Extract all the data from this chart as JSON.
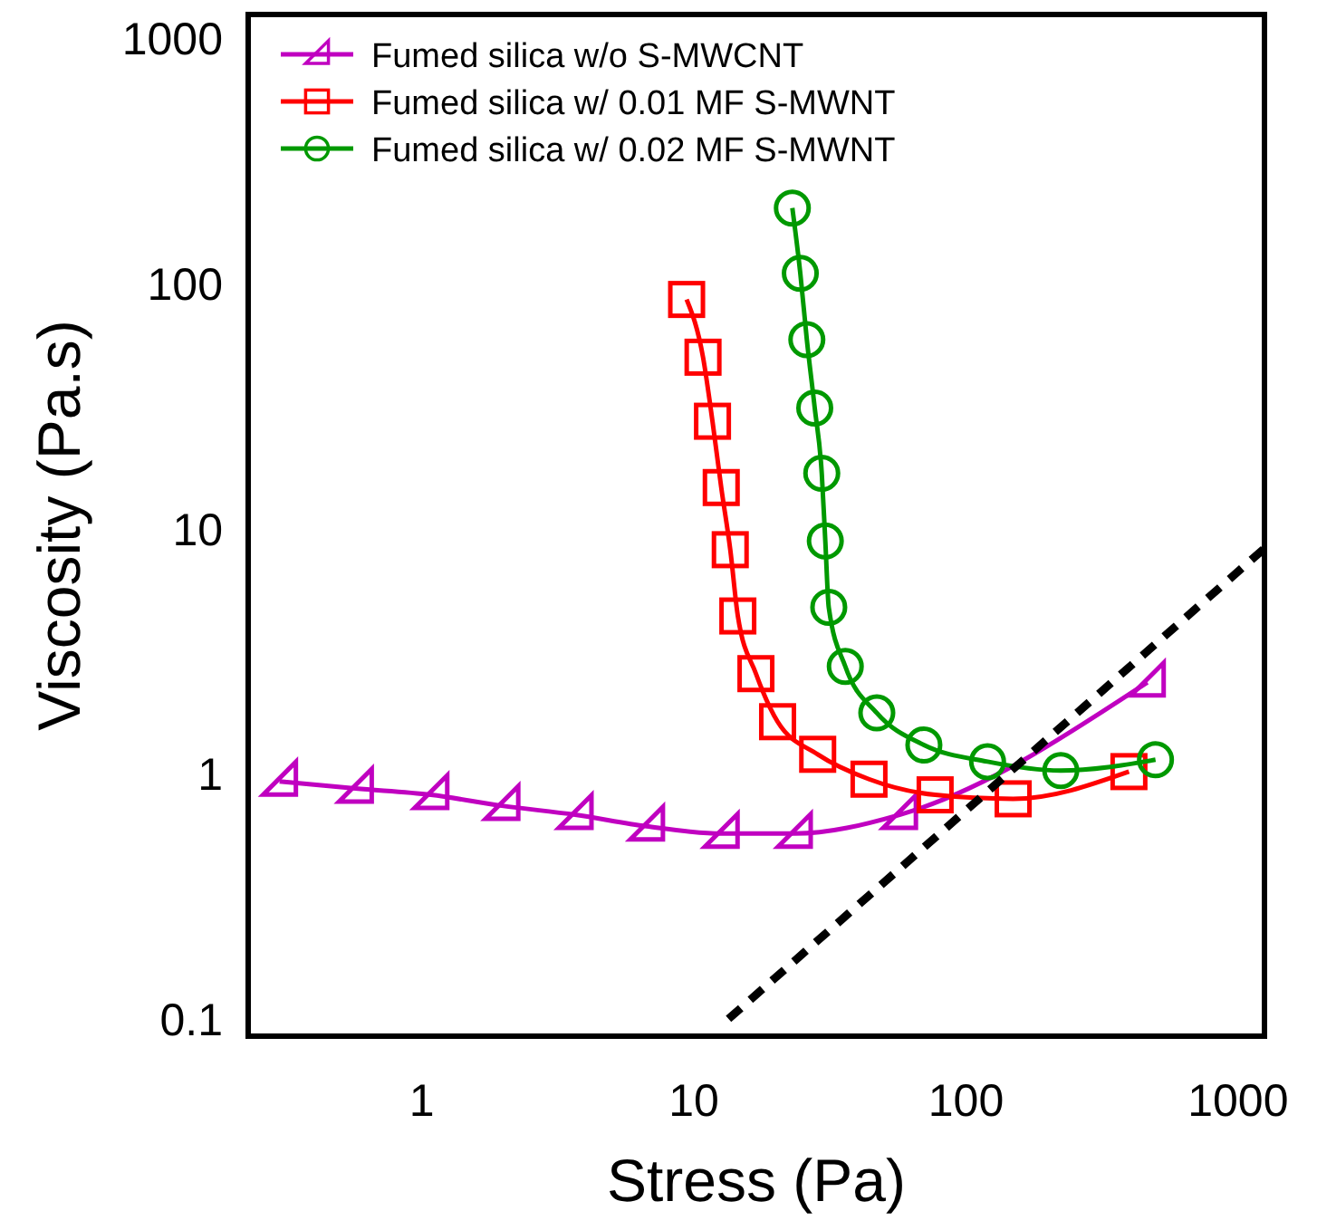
{
  "chart_data": {
    "type": "line",
    "xlabel": "Stress (Pa)",
    "ylabel": "Viscosity (Pa.s)",
    "log": "xy",
    "xlim": [
      0.23,
      1250
    ],
    "ylim": [
      0.085,
      1250
    ],
    "xticks": [
      1,
      10,
      100,
      1000
    ],
    "yticks": [
      0.1,
      1,
      10,
      100,
      1000
    ],
    "grid": false,
    "legend": "top left",
    "line_style": "solid",
    "series": [
      {
        "name": "Fumed silica w/o S-MWCNT",
        "color": "#c000c0",
        "marker": "triangle",
        "x": [
          0.3,
          0.57,
          1.08,
          1.97,
          3.66,
          6.7,
          12.6,
          23.4,
          57,
          464
        ],
        "values": [
          0.93,
          0.87,
          0.82,
          0.74,
          0.68,
          0.61,
          0.57,
          0.57,
          0.68,
          2.36
        ]
      },
      {
        "name": "Fumed silica w/ 0.01 MF S-MWNT",
        "color": "#ff0000",
        "marker": "square",
        "x": [
          9.4,
          10.8,
          11.7,
          12.6,
          13.6,
          14.5,
          16.9,
          20.3,
          28.5,
          44,
          77,
          149,
          397
        ],
        "values": [
          86,
          50,
          27.4,
          14.7,
          8.2,
          4.4,
          2.56,
          1.63,
          1.2,
          0.95,
          0.82,
          0.79,
          1.02
        ]
      },
      {
        "name": "Fumed silica w/ 0.02 MF S-MWNT",
        "color": "#009900",
        "marker": "circle",
        "x": [
          23,
          24.6,
          26,
          27.8,
          29.5,
          30.4,
          31.3,
          36,
          47,
          70,
          120,
          223,
          497
        ],
        "values": [
          203,
          110,
          59,
          31,
          16.8,
          8.9,
          4.77,
          2.74,
          1.77,
          1.31,
          1.12,
          1.03,
          1.14
        ]
      },
      {
        "color": "#000000",
        "marker": "none",
        "line_style": "dashed",
        "x": [
          13.4,
          1250
        ],
        "values": [
          0.1,
          8.3
        ]
      }
    ]
  }
}
